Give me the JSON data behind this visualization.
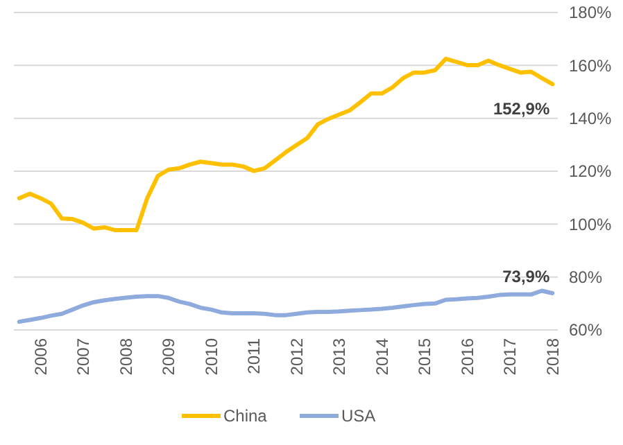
{
  "chart_data": {
    "type": "line",
    "x": [
      2005.5,
      2005.75,
      2006,
      2006.25,
      2006.5,
      2006.75,
      2007,
      2007.25,
      2007.5,
      2007.75,
      2008,
      2008.25,
      2008.5,
      2008.75,
      2009,
      2009.25,
      2009.5,
      2009.75,
      2010,
      2010.25,
      2010.5,
      2010.75,
      2011,
      2011.25,
      2011.5,
      2011.75,
      2012,
      2012.25,
      2012.5,
      2012.75,
      2013,
      2013.25,
      2013.5,
      2013.75,
      2014,
      2014.25,
      2014.5,
      2014.75,
      2015,
      2015.25,
      2015.5,
      2015.75,
      2016,
      2016.25,
      2016.5,
      2016.75,
      2017,
      2017.25,
      2017.5,
      2017.75,
      2018
    ],
    "series": [
      {
        "name": "China",
        "color": "#ffc000",
        "values": [
          109.8,
          111.5,
          109.8,
          107.7,
          102.1,
          101.9,
          100.5,
          98.3,
          98.8,
          97.7,
          97.7,
          97.7,
          109.8,
          118.2,
          120.6,
          121.1,
          122.5,
          123.6,
          123.1,
          122.5,
          122.5,
          121.8,
          120.1,
          121.1,
          124.1,
          127.2,
          129.9,
          132.5,
          137.7,
          139.8,
          141.4,
          143,
          146.1,
          149.4,
          149.4,
          151.7,
          155.2,
          157.3,
          157.3,
          158.2,
          162.5,
          161.3,
          160.1,
          160.1,
          161.8,
          160.1,
          158.7,
          157.3,
          157.6,
          155.2,
          152.9
        ]
      },
      {
        "name": "USA",
        "color": "#8faadc",
        "values": [
          63.1,
          63.8,
          64.5,
          65.4,
          66.1,
          67.7,
          69.3,
          70.5,
          71.2,
          71.7,
          72.2,
          72.6,
          72.8,
          72.8,
          72.1,
          70.7,
          69.8,
          68.4,
          67.7,
          66.6,
          66.3,
          66.3,
          66.3,
          66.1,
          65.6,
          65.6,
          66.1,
          66.6,
          66.8,
          66.8,
          67,
          67.3,
          67.5,
          67.7,
          68,
          68.4,
          68.9,
          69.4,
          69.8,
          70,
          71.4,
          71.6,
          71.9,
          72.1,
          72.6,
          73.2,
          73.4,
          73.4,
          73.4,
          74.8,
          73.9
        ]
      }
    ],
    "xlim": [
      2005.375,
      2018.125
    ],
    "xticks": [
      2006,
      2007,
      2008,
      2009,
      2010,
      2011,
      2012,
      2013,
      2014,
      2015,
      2016,
      2017,
      2018
    ],
    "ylim": [
      60,
      180
    ],
    "yticks": [
      {
        "value": 60,
        "label": "60%"
      },
      {
        "value": 80,
        "label": "80%"
      },
      {
        "value": 100,
        "label": "100%"
      },
      {
        "value": 120,
        "label": "120%"
      },
      {
        "value": 140,
        "label": "140%"
      },
      {
        "value": 160,
        "label": "160%"
      },
      {
        "value": 180,
        "label": "180%"
      }
    ],
    "grid": "y",
    "legend": "bottom",
    "line_style": "solid",
    "annotations": [
      {
        "text": "152,9%",
        "x": 2018,
        "y": 152.9
      },
      {
        "text": "73,9%",
        "x": 2018,
        "y": 73.9
      }
    ]
  }
}
